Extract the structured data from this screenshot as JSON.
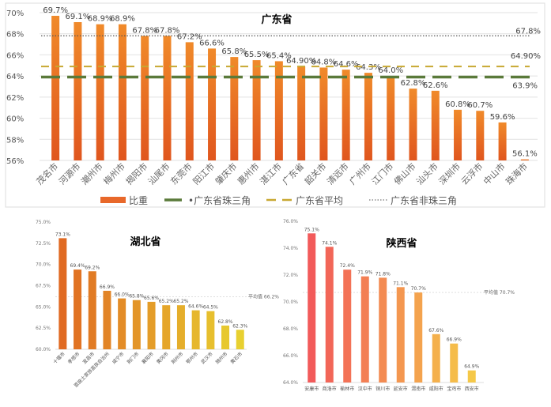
{
  "chart_data": [
    {
      "type": "bar",
      "title": "广东省",
      "ylim": [
        56,
        70
      ],
      "yticks": [
        "56%",
        "58%",
        "60%",
        "62%",
        "64%",
        "66%",
        "68%",
        "70%"
      ],
      "categories": [
        "茂名市",
        "河源市",
        "潮州市",
        "梅州市",
        "揭阳市",
        "汕尾市",
        "东莞市",
        "阳江市",
        "肇庆市",
        "惠州市",
        "湛江市",
        "广东省",
        "韶关市",
        "清远市",
        "广州市",
        "江门市",
        "佛山市",
        "汕头市",
        "深圳市",
        "云浮市",
        "中山市",
        "珠海市"
      ],
      "values": [
        69.7,
        69.1,
        68.9,
        68.9,
        67.8,
        67.8,
        67.2,
        66.6,
        65.8,
        65.5,
        65.4,
        64.9,
        64.8,
        64.6,
        64.3,
        64.0,
        62.8,
        62.6,
        60.8,
        60.7,
        59.6,
        56.1
      ],
      "labels": [
        "69.7%",
        "69.1%",
        "68.9%",
        "68.9%",
        "67.8%",
        "67.8%",
        "67.2%",
        "66.6%",
        "65.8%",
        "65.5%",
        "65.4%",
        "64.90%",
        "64.8%",
        "64.6%",
        "64.3%",
        "64.0%",
        "62.8%",
        "62.6%",
        "60.8%",
        "60.7%",
        "59.6%",
        "56.1%"
      ],
      "reference_lines": [
        {
          "name": "广东省珠三角",
          "value": 63.9,
          "label": "63.9%",
          "color": "#5a7a3a"
        },
        {
          "name": "广东省平均",
          "value": 64.9,
          "label": "64.90%",
          "color": "#c8a832"
        },
        {
          "name": "广东省非珠三角",
          "value": 67.8,
          "label": "67.8%",
          "color": "#555555"
        }
      ],
      "legend": {
        "bar": "比重",
        "lines": [
          "广东省珠三角",
          "广东省平均",
          "广东省非珠三角"
        ],
        "position": "bottom"
      }
    },
    {
      "type": "bar",
      "title": "湖北省",
      "ylim": [
        60,
        75
      ],
      "yticks": [
        "60.0%",
        "62.5%",
        "65.0%",
        "67.5%",
        "70.0%",
        "72.5%",
        "75.0%"
      ],
      "categories": [
        "十堰市",
        "孝感市",
        "宜昌市",
        "恩施土家族苗族自治州",
        "咸宁市",
        "荆门市",
        "襄阳市",
        "黄冈市",
        "荆州市",
        "鄂州市",
        "武汉市",
        "随州市",
        "黄石市"
      ],
      "values": [
        73.1,
        69.4,
        69.2,
        66.9,
        66.0,
        65.8,
        65.6,
        65.2,
        65.2,
        64.6,
        64.5,
        62.8,
        62.3
      ],
      "labels": [
        "73.1%",
        "69.4%",
        "69.2%",
        "66.9%",
        "66.0%",
        "65.8%",
        "65.6%",
        "65.2%",
        "65.2%",
        "64.6%",
        "64.5%",
        "62.8%",
        "62.3%"
      ],
      "average": {
        "value": 66.2,
        "label": "平均值 66.2%"
      }
    },
    {
      "type": "bar",
      "title": "陕西省",
      "ylim": [
        64,
        76
      ],
      "yticks": [
        "64.0%",
        "66.0%",
        "68.0%",
        "70.0%",
        "72.0%",
        "74.0%",
        "76.0%"
      ],
      "categories": [
        "安康市",
        "商洛市",
        "榆林市",
        "汉中市",
        "铜川市",
        "延安市",
        "渭南市",
        "咸阳市",
        "宝鸡市",
        "西安市"
      ],
      "values": [
        75.1,
        74.1,
        72.4,
        71.9,
        71.8,
        71.1,
        70.7,
        67.6,
        66.9,
        64.9
      ],
      "labels": [
        "75.1%",
        "74.1%",
        "72.4%",
        "71.9%",
        "71.8%",
        "71.1%",
        "70.7%",
        "67.6%",
        "66.9%",
        "64.9%"
      ],
      "average": {
        "value": 70.7,
        "label": "平均值 70.7%"
      }
    }
  ]
}
